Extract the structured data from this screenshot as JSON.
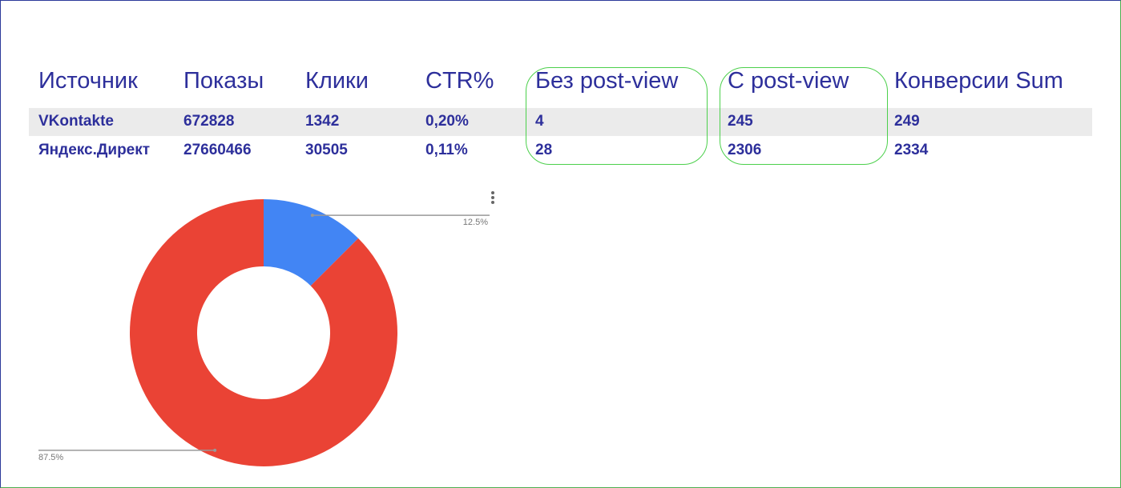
{
  "table": {
    "header": [
      "Источник",
      "Показы",
      "Клики",
      "CTR%",
      "Без post-view",
      "С post-view",
      "Конверсии Sum"
    ],
    "rows": [
      [
        "VKontakte",
        "672828",
        "1342",
        "0,20%",
        "4",
        "245",
        "249"
      ],
      [
        "Яндекс.Директ",
        "27660466",
        "30505",
        "0,11%",
        "28",
        "2306",
        "2334"
      ]
    ]
  },
  "chart_data": {
    "type": "donut",
    "values": [
      12.5,
      87.5
    ],
    "value_labels": [
      "12.5%",
      "87.5%"
    ],
    "colors": [
      "#4285f4",
      "#ea4335"
    ]
  }
}
